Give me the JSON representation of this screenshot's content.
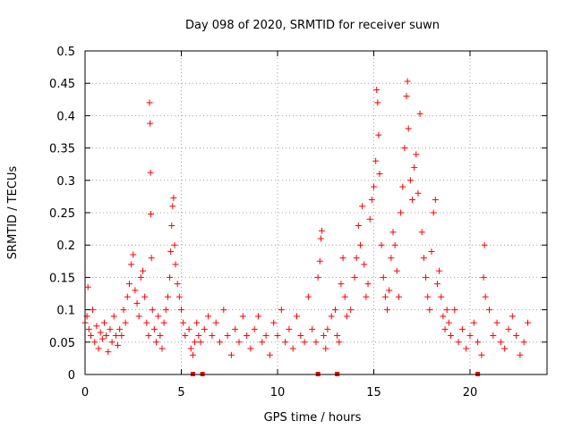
{
  "chart_data": {
    "type": "scatter",
    "title": "Day 098 of 2020, SRMTID for receiver suwn",
    "xlabel": "GPS time / hours",
    "ylabel": "SRMTID / TECUs",
    "xlim": [
      0,
      24
    ],
    "ylim": [
      0,
      0.5
    ],
    "x_ticks": [
      0,
      5,
      10,
      15,
      20
    ],
    "x_tick_labels": [
      "0",
      "5",
      "10",
      "15",
      "20"
    ],
    "y_ticks": [
      0,
      0.05,
      0.1,
      0.15,
      0.2,
      0.25,
      0.3,
      0.35,
      0.4,
      0.45,
      0.5
    ],
    "y_tick_labels": [
      "0",
      "0.05",
      "0.1",
      "0.15",
      "0.2",
      "0.25",
      "0.3",
      "0.35",
      "0.4",
      "0.45",
      "0.5"
    ],
    "grid": true,
    "marker": "plus",
    "marker_color": "#ff0000",
    "grid_color": "#a0a0a0",
    "series": [
      {
        "name": "SRMTID",
        "points": [
          [
            0.0,
            0.08
          ],
          [
            0.1,
            0.09
          ],
          [
            0.15,
            0.135
          ],
          [
            0.2,
            0.07
          ],
          [
            0.3,
            0.06
          ],
          [
            0.4,
            0.1
          ],
          [
            0.5,
            0.05
          ],
          [
            0.6,
            0.075
          ],
          [
            0.7,
            0.04
          ],
          [
            0.8,
            0.065
          ],
          [
            0.9,
            0.055
          ],
          [
            1.0,
            0.08
          ],
          [
            1.1,
            0.06
          ],
          [
            1.2,
            0.035
          ],
          [
            1.3,
            0.07
          ],
          [
            1.4,
            0.05
          ],
          [
            1.5,
            0.09
          ],
          [
            1.6,
            0.06
          ],
          [
            1.7,
            0.045
          ],
          [
            1.8,
            0.07
          ],
          [
            1.9,
            0.06
          ],
          [
            2.0,
            0.1
          ],
          [
            2.1,
            0.08
          ],
          [
            2.2,
            0.12
          ],
          [
            2.3,
            0.14
          ],
          [
            2.4,
            0.17
          ],
          [
            2.5,
            0.185
          ],
          [
            2.6,
            0.13
          ],
          [
            2.7,
            0.11
          ],
          [
            2.8,
            0.09
          ],
          [
            2.9,
            0.15
          ],
          [
            3.0,
            0.16
          ],
          [
            3.1,
            0.12
          ],
          [
            3.2,
            0.08
          ],
          [
            3.3,
            0.06
          ],
          [
            3.35,
            0.42
          ],
          [
            3.38,
            0.388
          ],
          [
            3.4,
            0.312
          ],
          [
            3.42,
            0.248
          ],
          [
            3.45,
            0.18
          ],
          [
            3.5,
            0.1
          ],
          [
            3.6,
            0.07
          ],
          [
            3.7,
            0.05
          ],
          [
            3.8,
            0.09
          ],
          [
            3.9,
            0.06
          ],
          [
            4.0,
            0.04
          ],
          [
            4.1,
            0.08
          ],
          [
            4.2,
            0.1
          ],
          [
            4.3,
            0.12
          ],
          [
            4.4,
            0.15
          ],
          [
            4.45,
            0.19
          ],
          [
            4.5,
            0.23
          ],
          [
            4.55,
            0.26
          ],
          [
            4.6,
            0.273
          ],
          [
            4.65,
            0.2
          ],
          [
            4.7,
            0.17
          ],
          [
            4.8,
            0.14
          ],
          [
            4.9,
            0.12
          ],
          [
            5.0,
            0.1
          ],
          [
            5.1,
            0.08
          ],
          [
            5.2,
            0.06
          ],
          [
            5.4,
            0.07
          ],
          [
            5.5,
            0.04
          ],
          [
            5.6,
            0.03
          ],
          [
            5.7,
            0.05
          ],
          [
            5.8,
            0.08
          ],
          [
            5.9,
            0.06
          ],
          [
            6.0,
            0.05
          ],
          [
            6.2,
            0.07
          ],
          [
            6.4,
            0.09
          ],
          [
            6.6,
            0.06
          ],
          [
            6.8,
            0.08
          ],
          [
            7.0,
            0.05
          ],
          [
            7.2,
            0.1
          ],
          [
            7.4,
            0.06
          ],
          [
            7.6,
            0.03
          ],
          [
            7.8,
            0.07
          ],
          [
            8.0,
            0.05
          ],
          [
            8.2,
            0.09
          ],
          [
            8.4,
            0.06
          ],
          [
            8.6,
            0.04
          ],
          [
            8.8,
            0.07
          ],
          [
            9.0,
            0.09
          ],
          [
            9.2,
            0.05
          ],
          [
            9.4,
            0.06
          ],
          [
            9.6,
            0.03
          ],
          [
            9.8,
            0.08
          ],
          [
            10.0,
            0.06
          ],
          [
            10.2,
            0.1
          ],
          [
            10.4,
            0.05
          ],
          [
            10.6,
            0.07
          ],
          [
            10.8,
            0.04
          ],
          [
            11.0,
            0.09
          ],
          [
            11.2,
            0.06
          ],
          [
            11.4,
            0.05
          ],
          [
            11.6,
            0.12
          ],
          [
            11.8,
            0.07
          ],
          [
            12.0,
            0.05
          ],
          [
            12.1,
            0.15
          ],
          [
            12.2,
            0.175
          ],
          [
            12.25,
            0.21
          ],
          [
            12.3,
            0.222
          ],
          [
            12.4,
            0.06
          ],
          [
            12.5,
            0.04
          ],
          [
            12.6,
            0.07
          ],
          [
            12.8,
            0.09
          ],
          [
            13.0,
            0.1
          ],
          [
            13.1,
            0.06
          ],
          [
            13.2,
            0.05
          ],
          [
            13.3,
            0.14
          ],
          [
            13.4,
            0.18
          ],
          [
            13.5,
            0.12
          ],
          [
            13.6,
            0.09
          ],
          [
            13.8,
            0.1
          ],
          [
            14.0,
            0.15
          ],
          [
            14.1,
            0.18
          ],
          [
            14.2,
            0.23
          ],
          [
            14.3,
            0.2
          ],
          [
            14.4,
            0.26
          ],
          [
            14.5,
            0.17
          ],
          [
            14.6,
            0.12
          ],
          [
            14.7,
            0.14
          ],
          [
            14.8,
            0.24
          ],
          [
            14.9,
            0.27
          ],
          [
            15.0,
            0.29
          ],
          [
            15.1,
            0.33
          ],
          [
            15.15,
            0.44
          ],
          [
            15.2,
            0.42
          ],
          [
            15.25,
            0.37
          ],
          [
            15.3,
            0.31
          ],
          [
            15.4,
            0.2
          ],
          [
            15.5,
            0.15
          ],
          [
            15.6,
            0.12
          ],
          [
            15.7,
            0.1
          ],
          [
            15.8,
            0.13
          ],
          [
            15.9,
            0.18
          ],
          [
            16.0,
            0.22
          ],
          [
            16.1,
            0.2
          ],
          [
            16.2,
            0.16
          ],
          [
            16.3,
            0.12
          ],
          [
            16.4,
            0.25
          ],
          [
            16.5,
            0.29
          ],
          [
            16.6,
            0.35
          ],
          [
            16.7,
            0.43
          ],
          [
            16.75,
            0.453
          ],
          [
            16.8,
            0.38
          ],
          [
            16.9,
            0.3
          ],
          [
            17.0,
            0.27
          ],
          [
            17.1,
            0.32
          ],
          [
            17.2,
            0.34
          ],
          [
            17.3,
            0.28
          ],
          [
            17.4,
            0.403
          ],
          [
            17.5,
            0.22
          ],
          [
            17.6,
            0.18
          ],
          [
            17.7,
            0.15
          ],
          [
            17.8,
            0.12
          ],
          [
            17.9,
            0.1
          ],
          [
            18.0,
            0.19
          ],
          [
            18.1,
            0.25
          ],
          [
            18.2,
            0.27
          ],
          [
            18.3,
            0.14
          ],
          [
            18.4,
            0.16
          ],
          [
            18.5,
            0.12
          ],
          [
            18.6,
            0.09
          ],
          [
            18.7,
            0.07
          ],
          [
            18.8,
            0.1
          ],
          [
            18.9,
            0.08
          ],
          [
            19.0,
            0.06
          ],
          [
            19.2,
            0.1
          ],
          [
            19.4,
            0.05
          ],
          [
            19.6,
            0.07
          ],
          [
            19.8,
            0.04
          ],
          [
            20.0,
            0.06
          ],
          [
            20.2,
            0.08
          ],
          [
            20.4,
            0.05
          ],
          [
            20.6,
            0.03
          ],
          [
            20.7,
            0.15
          ],
          [
            20.75,
            0.2
          ],
          [
            20.8,
            0.12
          ],
          [
            21.0,
            0.1
          ],
          [
            21.2,
            0.06
          ],
          [
            21.4,
            0.08
          ],
          [
            21.6,
            0.05
          ],
          [
            21.8,
            0.04
          ],
          [
            22.0,
            0.07
          ],
          [
            22.2,
            0.09
          ],
          [
            22.4,
            0.06
          ],
          [
            22.6,
            0.03
          ],
          [
            22.8,
            0.05
          ],
          [
            23.0,
            0.08
          ]
        ]
      }
    ],
    "zero_markers": [
      5.6,
      6.1,
      12.1,
      13.1,
      20.4
    ]
  }
}
